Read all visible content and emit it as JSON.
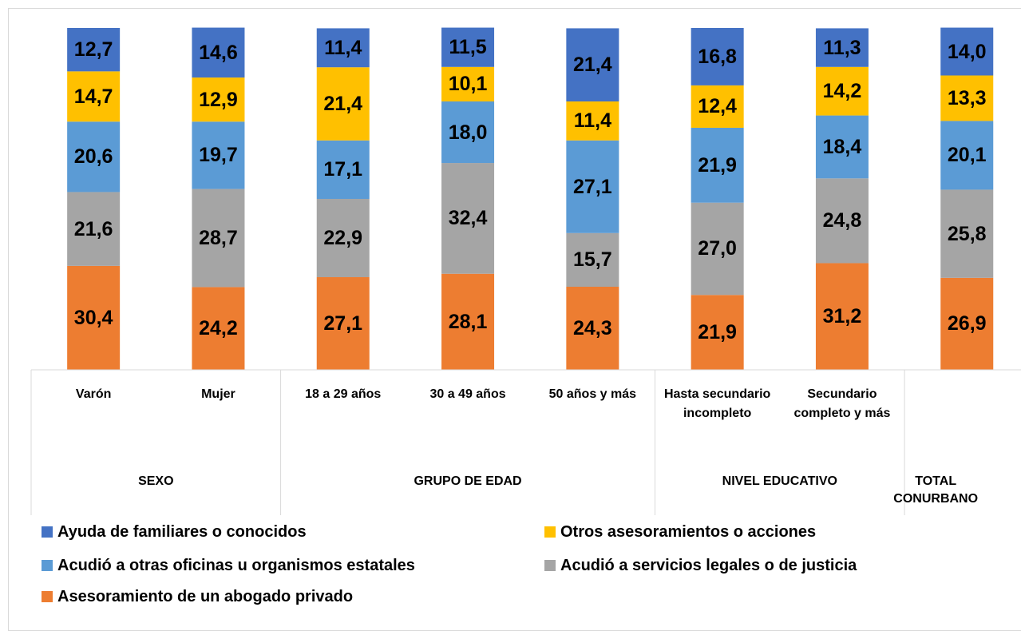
{
  "chart_data": {
    "type": "stacked_bar",
    "categories": [
      "Varón",
      "Mujer",
      "18 a 29 años",
      "30 a 49 años",
      "50 años y más",
      "Hasta secundario incompleto",
      "Secundario completo y más",
      null
    ],
    "groups": [
      {
        "label": "SEXO",
        "count": 2
      },
      {
        "label": "GRUPO DE EDAD",
        "count": 3
      },
      {
        "label": "NIVEL EDUCATIVO",
        "count": 2
      },
      {
        "label": "TOTAL CONURBANO",
        "count": 1
      }
    ],
    "ylim": [
      0,
      100
    ],
    "series": [
      {
        "name": "Ayuda de familiares o conocidos",
        "color": "#4472c4",
        "values": [
          12.7,
          14.6,
          11.4,
          11.5,
          21.4,
          16.8,
          11.3,
          14.0
        ],
        "value_labels": [
          "12,7",
          "14,6",
          "11,4",
          "11,5",
          "21,4",
          "16,8",
          "11,3",
          "14,0"
        ]
      },
      {
        "name": "Otros asesoramientos o acciones",
        "color": "#ffc000",
        "values": [
          14.7,
          12.9,
          21.4,
          10.1,
          11.4,
          12.4,
          14.2,
          13.3
        ],
        "value_labels": [
          "14,7",
          "12,9",
          "21,4",
          "10,1",
          "11,4",
          "12,4",
          "14,2",
          "13,3"
        ]
      },
      {
        "name": "Acudió a otras oficinas u organismos estatales",
        "color": "#5b9bd5",
        "values": [
          20.6,
          19.7,
          17.1,
          18.0,
          27.1,
          21.9,
          18.4,
          20.1
        ],
        "value_labels": [
          "20,6",
          "19,7",
          "17,1",
          "18,0",
          "27,1",
          "21,9",
          "18,4",
          "20,1"
        ]
      },
      {
        "name": "Acudió a servicios legales o de justicia",
        "color": "#a5a5a5",
        "values": [
          21.6,
          28.7,
          22.9,
          32.4,
          15.7,
          27.0,
          24.8,
          25.8
        ],
        "value_labels": [
          "21,6",
          "28,7",
          "22,9",
          "32,4",
          "15,7",
          "27,0",
          "24,8",
          "25,8"
        ]
      },
      {
        "name": "Asesoramiento de un abogado privado",
        "color": "#ed7d31",
        "values": [
          30.4,
          24.2,
          27.1,
          28.1,
          24.3,
          21.9,
          31.2,
          26.9
        ],
        "value_labels": [
          "30,4",
          "24,2",
          "27,1",
          "28,1",
          "24,3",
          "21,9",
          "31,2",
          "26,9"
        ]
      }
    ]
  }
}
